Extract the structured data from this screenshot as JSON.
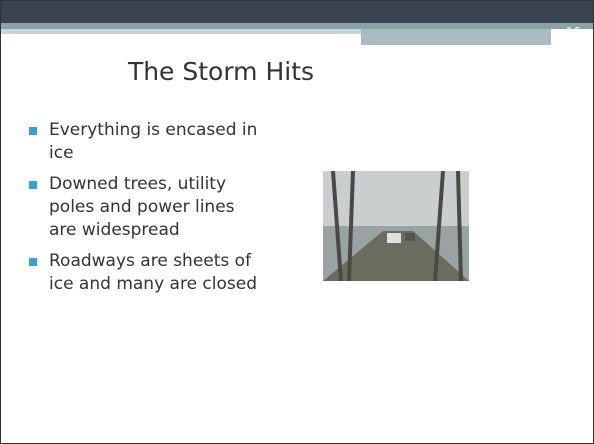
{
  "slide_number": "16",
  "title": "The Storm Hits",
  "bullets": [
    {
      "lines": [
        "Everything is encased in",
        "ice"
      ]
    },
    {
      "lines": [
        "Downed trees, utility",
        "poles and power lines",
        "are widespread"
      ]
    },
    {
      "lines": [
        "Roadways are sheets of",
        "ice and many are closed"
      ]
    }
  ]
}
